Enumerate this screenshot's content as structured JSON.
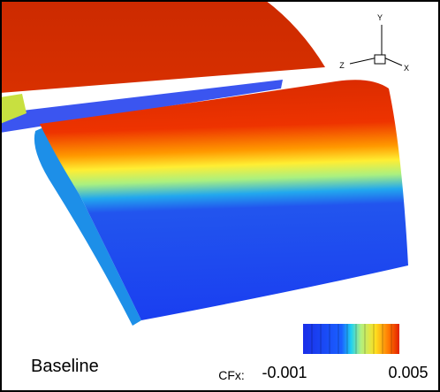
{
  "label": "Baseline",
  "axes_triad": {
    "y": "Y",
    "z": "Z",
    "x": "X"
  },
  "colorbar": {
    "label": "CFx:",
    "min": -0.001,
    "max": 0.005
  }
}
